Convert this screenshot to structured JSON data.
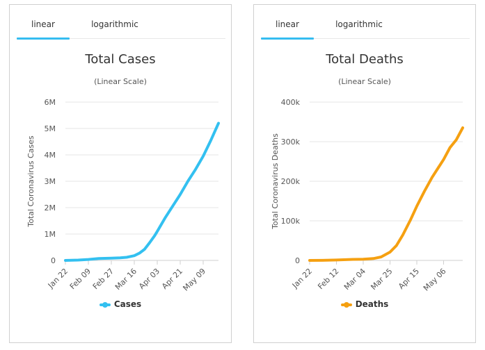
{
  "tabs": {
    "cases": [
      {
        "label": "linear",
        "active": true
      },
      {
        "label": "logarithmic",
        "active": false
      }
    ],
    "deaths": [
      {
        "label": "linear",
        "active": true
      },
      {
        "label": "logarithmic",
        "active": false
      }
    ]
  },
  "chart_data": [
    {
      "type": "line",
      "title": "Total Cases",
      "subtitle": "(Linear Scale)",
      "xlabel": "",
      "ylabel": "Total Coronavirus Cases",
      "ylim": [
        0,
        6000000
      ],
      "yticks": [
        0,
        1000000,
        2000000,
        3000000,
        4000000,
        5000000,
        6000000
      ],
      "ytick_labels": [
        "0",
        "1M",
        "2M",
        "3M",
        "4M",
        "5M",
        "6M"
      ],
      "xlim": [
        "2020-01-22",
        "2020-05-21"
      ],
      "xticks": [
        "2020-01-22",
        "2020-02-09",
        "2020-02-27",
        "2020-03-16",
        "2020-04-03",
        "2020-04-21",
        "2020-05-09"
      ],
      "xtick_labels": [
        "Jan 22",
        "Feb 09",
        "Feb 27",
        "Mar 16",
        "Apr 03",
        "Apr 21",
        "May 09"
      ],
      "grid": true,
      "color": "#33c0f0",
      "legend_position": "bottom",
      "series": [
        {
          "name": "Cases",
          "x": [
            "2020-01-22",
            "2020-02-01",
            "2020-02-09",
            "2020-02-17",
            "2020-02-27",
            "2020-03-05",
            "2020-03-10",
            "2020-03-16",
            "2020-03-20",
            "2020-03-24",
            "2020-03-28",
            "2020-04-01",
            "2020-04-03",
            "2020-04-09",
            "2020-04-15",
            "2020-04-21",
            "2020-04-27",
            "2020-05-03",
            "2020-05-09",
            "2020-05-15",
            "2020-05-21"
          ],
          "y": [
            600,
            12000,
            37000,
            72000,
            83000,
            98000,
            118000,
            180000,
            275000,
            420000,
            670000,
            940000,
            1100000,
            1600000,
            2050000,
            2500000,
            3000000,
            3450000,
            3950000,
            4550000,
            5200000
          ]
        }
      ]
    },
    {
      "type": "line",
      "title": "Total Deaths",
      "subtitle": "(Linear Scale)",
      "xlabel": "",
      "ylabel": "Total Coronavirus Deaths",
      "ylim": [
        0,
        400000
      ],
      "yticks": [
        0,
        100000,
        200000,
        300000,
        400000
      ],
      "ytick_labels": [
        "0",
        "100k",
        "200k",
        "300k",
        "400k"
      ],
      "xlim": [
        "2020-01-22",
        "2020-05-21"
      ],
      "xticks": [
        "2020-01-22",
        "2020-02-12",
        "2020-03-04",
        "2020-03-25",
        "2020-04-15",
        "2020-05-06"
      ],
      "xtick_labels": [
        "Jan 22",
        "Feb 12",
        "Mar 04",
        "Mar 25",
        "Apr 15",
        "May 06"
      ],
      "grid": true,
      "color": "#f5a011",
      "legend_position": "bottom",
      "series": [
        {
          "name": "Deaths",
          "x": [
            "2020-01-22",
            "2020-02-01",
            "2020-02-12",
            "2020-02-25",
            "2020-03-04",
            "2020-03-12",
            "2020-03-18",
            "2020-03-25",
            "2020-03-30",
            "2020-04-04",
            "2020-04-10",
            "2020-04-15",
            "2020-04-21",
            "2020-04-27",
            "2020-05-02",
            "2020-05-06",
            "2020-05-11",
            "2020-05-16",
            "2020-05-21"
          ],
          "y": [
            17,
            259,
            1115,
            2700,
            3200,
            4700,
            8800,
            21000,
            37500,
            64000,
            102000,
            137000,
            175000,
            210000,
            235000,
            255000,
            285000,
            305000,
            335000
          ]
        }
      ]
    }
  ]
}
